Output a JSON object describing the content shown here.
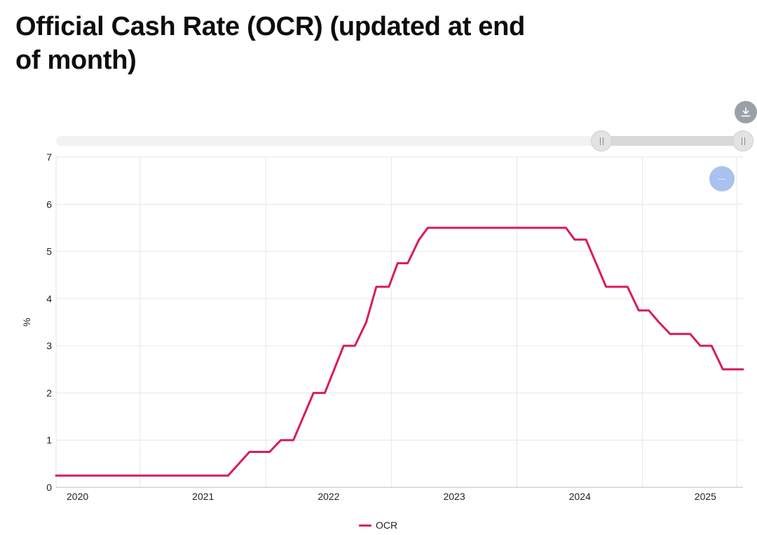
{
  "title": "Official Cash Rate (OCR) (updated at end of month)",
  "icons": {
    "download": "download-icon",
    "zoom_out": "minus-icon"
  },
  "colors": {
    "series": "#d81b60",
    "grid": "#e6e6e6",
    "axis": "#bdbdbd",
    "text": "#222222"
  },
  "legend": {
    "label": "OCR"
  },
  "chart_data": {
    "type": "line",
    "title": "Official Cash Rate (OCR) (updated at end of month)",
    "xlabel": "",
    "ylabel": "%",
    "ylim": [
      0,
      7
    ],
    "xlim": [
      2019.98,
      2025.45
    ],
    "yticks": [
      0,
      1,
      2,
      3,
      4,
      5,
      6,
      7
    ],
    "xticks": [
      {
        "value": 2020.0,
        "label": "2020"
      },
      {
        "value": 2021.0,
        "label": "2021"
      },
      {
        "value": 2022.0,
        "label": "2022"
      },
      {
        "value": 2023.0,
        "label": "2023"
      },
      {
        "value": 2024.0,
        "label": "2024"
      },
      {
        "value": 2025.0,
        "label": "2025"
      }
    ],
    "vgrid": [
      2020.65,
      2021.65,
      2022.65,
      2023.65,
      2024.65,
      2025.4
    ],
    "grid": true,
    "legend_position": "bottom-center",
    "series": [
      {
        "name": "OCR",
        "x": [
          2019.98,
          2021.35,
          2021.52,
          2021.68,
          2021.77,
          2021.87,
          2022.03,
          2022.12,
          2022.27,
          2022.36,
          2022.45,
          2022.53,
          2022.63,
          2022.7,
          2022.78,
          2022.87,
          2022.94,
          2022.98,
          2024.04,
          2024.11,
          2024.2,
          2024.28,
          2024.36,
          2024.44,
          2024.53,
          2024.62,
          2024.7,
          2024.78,
          2024.87,
          2024.95,
          2025.03,
          2025.11,
          2025.2,
          2025.29,
          2025.37,
          2025.45
        ],
        "values": [
          0.25,
          0.25,
          0.75,
          0.75,
          1.0,
          1.0,
          2.0,
          2.0,
          3.0,
          3.0,
          3.5,
          4.25,
          4.25,
          4.75,
          4.75,
          5.25,
          5.5,
          5.5,
          5.5,
          5.25,
          5.25,
          4.75,
          4.25,
          4.25,
          4.25,
          3.75,
          3.75,
          3.5,
          3.25,
          3.25,
          3.25,
          3.0,
          3.0,
          2.5,
          2.5,
          2.5
        ]
      }
    ]
  }
}
